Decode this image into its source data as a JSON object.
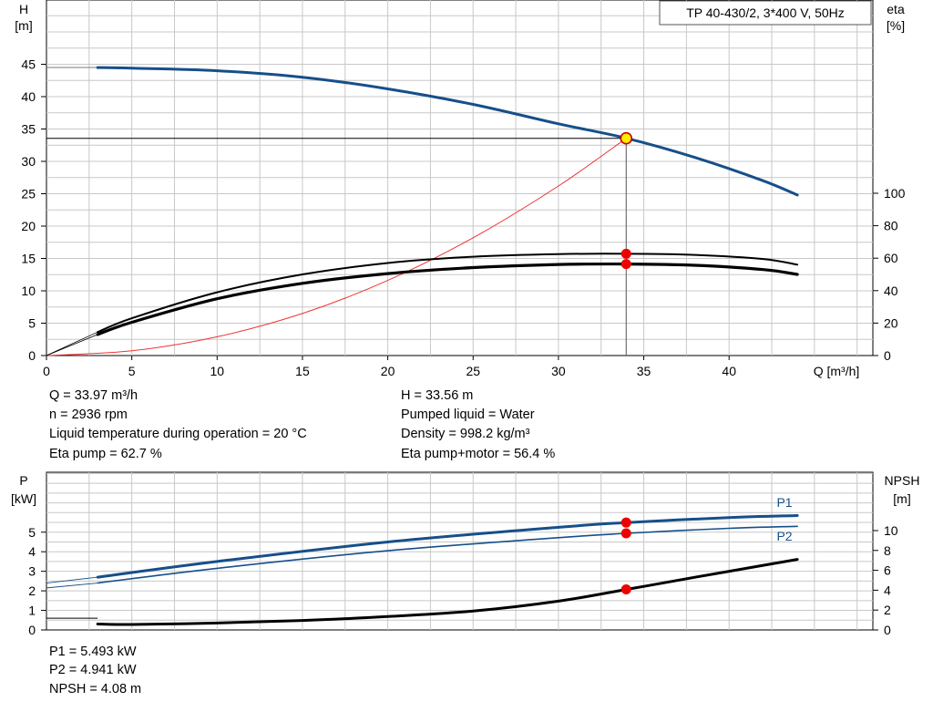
{
  "title_box": "TP 40-430/2, 3*400 V, 50Hz",
  "top_chart": {
    "left_axis_label": [
      "H",
      "[m]"
    ],
    "right_axis_label": [
      "eta",
      "[%]"
    ],
    "x_axis_label": "Q [m³/h]",
    "x_ticks": [
      0,
      5,
      10,
      15,
      20,
      25,
      30,
      35,
      40
    ],
    "h_ticks": [
      0,
      5,
      10,
      15,
      20,
      25,
      30,
      35,
      40,
      45
    ],
    "eta_ticks": [
      0,
      20,
      40,
      60,
      80,
      100
    ]
  },
  "bottom_chart": {
    "left_axis_label": [
      "P",
      "[kW]"
    ],
    "right_axis_label": [
      "NPSH",
      "[m]"
    ],
    "p_ticks": [
      0,
      1,
      2,
      3,
      4,
      5
    ],
    "npsh_ticks": [
      0,
      2,
      4,
      6,
      8,
      10
    ],
    "series_labels": [
      "P1",
      "P2"
    ]
  },
  "chart_data": {
    "type": "line",
    "operating_point": {
      "Q": 33.97,
      "H": 33.56,
      "P1": 5.493,
      "P2": 4.941,
      "NPSH": 4.08,
      "eta_pump": 62.7,
      "eta_total": 56.4
    },
    "series": [
      {
        "name": "H",
        "axis": "H",
        "color": "#164f8a",
        "x": [
          3,
          5,
          10,
          15,
          20,
          25,
          30,
          34,
          38,
          42,
          44
        ],
        "y": [
          44.5,
          44.4,
          44.0,
          43.0,
          41.2,
          38.8,
          35.8,
          33.56,
          30.6,
          27.0,
          24.8
        ]
      },
      {
        "name": "system",
        "axis": "H",
        "color": "#ee3333",
        "x": [
          0,
          5,
          10,
          15,
          20,
          25,
          30,
          33.97
        ],
        "y": [
          0,
          0.73,
          2.9,
          6.5,
          11.6,
          18.2,
          26.2,
          33.56
        ]
      },
      {
        "name": "eta pump",
        "axis": "eta",
        "color": "#000000",
        "x": [
          0,
          3,
          5,
          10,
          15,
          20,
          25,
          30,
          34,
          38,
          42,
          44
        ],
        "y": [
          0,
          14.5,
          23,
          39,
          50,
          57,
          60.9,
          62.5,
          62.7,
          62,
          59.5,
          56
        ]
      },
      {
        "name": "eta pump+motor",
        "axis": "eta",
        "color": "#000000",
        "x": [
          0,
          3,
          5,
          10,
          15,
          20,
          25,
          30,
          34,
          38,
          42,
          44
        ],
        "y": [
          0,
          13,
          20.5,
          35,
          44.5,
          50.5,
          54.2,
          56.1,
          56.4,
          55.6,
          53,
          50
        ]
      },
      {
        "name": "P1",
        "axis": "P",
        "color": "#164f8a",
        "x": [
          0,
          3,
          10,
          20,
          30,
          34,
          40,
          44
        ],
        "y": [
          2.4,
          2.7,
          3.5,
          4.5,
          5.25,
          5.49,
          5.75,
          5.85
        ]
      },
      {
        "name": "P2",
        "axis": "P",
        "color": "#164f8a",
        "x": [
          0,
          3,
          10,
          20,
          30,
          34,
          40,
          44
        ],
        "y": [
          2.15,
          2.4,
          3.15,
          4.05,
          4.72,
          4.94,
          5.2,
          5.3
        ]
      },
      {
        "name": "NPSH",
        "axis": "NPSH",
        "color": "#000000",
        "x": [
          3,
          5,
          10,
          15,
          20,
          25,
          30,
          34,
          38,
          42,
          44
        ],
        "y": [
          0.6,
          0.55,
          0.7,
          0.95,
          1.35,
          1.9,
          2.9,
          4.08,
          5.3,
          6.5,
          7.1
        ]
      }
    ],
    "x_range": [
      0,
      47.5
    ],
    "ylim_H": [
      0,
      50
    ],
    "ylim_eta": [
      0,
      100
    ],
    "ylim_P": [
      0,
      7
    ],
    "ylim_NPSH": [
      0,
      14
    ],
    "grid": true
  },
  "info_top": [
    "Q = 33.97 m³/h",
    "n = 2936 rpm",
    "Liquid temperature during operation = 20 °C",
    "Eta pump = 62.7 %",
    "H = 33.56 m",
    "Pumped liquid = Water",
    "Density = 998.2 kg/m³",
    "Eta pump+motor = 56.4 %"
  ],
  "info_bottom": [
    "P1 = 5.493 kW",
    "P2 = 4.941 kW",
    "NPSH = 4.08 m"
  ]
}
